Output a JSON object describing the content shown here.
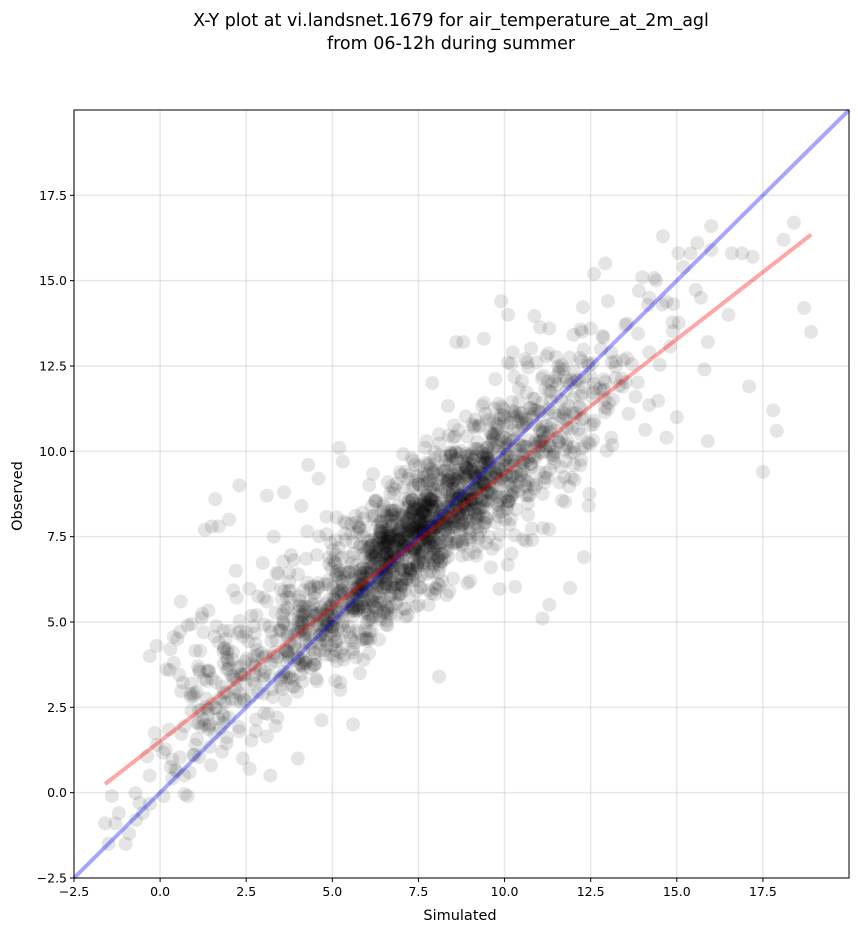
{
  "chart_data": {
    "type": "scatter",
    "title_lines": [
      "X-Y plot at vi.landsnet.1679 for air_temperature_at_2m_agl",
      "from 06-12h during summer"
    ],
    "xlabel": "Simulated",
    "ylabel": "Observed",
    "xlim": [
      -2.5,
      20
    ],
    "ylim": [
      -2.5,
      20
    ],
    "xticks": [
      -2.5,
      0.0,
      2.5,
      5.0,
      7.5,
      10.0,
      12.5,
      15.0,
      17.5
    ],
    "yticks": [
      -2.5,
      0.0,
      2.5,
      5.0,
      7.5,
      10.0,
      12.5,
      15.0,
      17.5
    ],
    "xtick_labels": [
      "−2.5",
      "0.0",
      "2.5",
      "5.0",
      "7.5",
      "10.0",
      "12.5",
      "15.0",
      "17.5"
    ],
    "ytick_labels": [
      "−2.5",
      "0.0",
      "2.5",
      "5.0",
      "7.5",
      "10.0",
      "12.5",
      "15.0",
      "17.5"
    ],
    "grid": true,
    "point_color": "#000000",
    "point_alpha": 0.1,
    "lines": [
      {
        "role": "identity",
        "color": "#0000ff",
        "alpha": 0.35,
        "points": [
          [
            -2.5,
            -2.5
          ],
          [
            20,
            20
          ]
        ]
      },
      {
        "role": "regression",
        "color": "#ff0000",
        "alpha": 0.35,
        "points": [
          [
            -1.6,
            0.25
          ],
          [
            18.9,
            16.35
          ]
        ]
      }
    ],
    "points": [
      [
        -1.5,
        -1.5
      ],
      [
        -1.6,
        -0.9
      ],
      [
        -1.3,
        -0.9
      ],
      [
        -1.4,
        -0.1
      ],
      [
        -1.2,
        -0.6
      ],
      [
        -1.0,
        -1.5
      ],
      [
        -0.9,
        -1.2
      ],
      [
        -0.7,
        -0.8
      ],
      [
        -0.6,
        -0.3
      ],
      [
        -0.5,
        -0.6
      ],
      [
        -0.3,
        0.5
      ],
      [
        -0.3,
        4.0
      ],
      [
        -0.1,
        1.4
      ],
      [
        -0.1,
        4.3
      ],
      [
        0.1,
        -0.1
      ],
      [
        0.3,
        4.2
      ],
      [
        0.4,
        3.8
      ],
      [
        0.6,
        5.6
      ],
      [
        0.7,
        0.5
      ],
      [
        0.8,
        -0.1
      ],
      [
        0.8,
        4.9
      ],
      [
        0.9,
        3.2
      ],
      [
        1.0,
        1.1
      ],
      [
        1.1,
        3.7
      ],
      [
        1.3,
        7.7
      ],
      [
        1.5,
        7.8
      ],
      [
        1.6,
        8.6
      ],
      [
        1.7,
        7.8
      ],
      [
        1.9,
        4.5
      ],
      [
        2.0,
        8.0
      ],
      [
        2.2,
        6.5
      ],
      [
        2.3,
        9.0
      ],
      [
        2.4,
        1.0
      ],
      [
        2.6,
        0.7
      ],
      [
        3.1,
        8.7
      ],
      [
        3.2,
        0.5
      ],
      [
        3.3,
        7.5
      ],
      [
        3.6,
        8.8
      ],
      [
        4.0,
        1.0
      ],
      [
        4.1,
        8.4
      ],
      [
        4.3,
        9.6
      ],
      [
        4.6,
        9.2
      ],
      [
        5.2,
        10.1
      ],
      [
        5.3,
        9.7
      ],
      [
        5.6,
        2.0
      ],
      [
        5.8,
        3.5
      ],
      [
        7.9,
        12.0
      ],
      [
        8.1,
        3.4
      ],
      [
        8.6,
        13.2
      ],
      [
        8.8,
        13.2
      ],
      [
        9.4,
        13.3
      ],
      [
        9.9,
        14.4
      ],
      [
        10.1,
        14.0
      ],
      [
        10.1,
        12.6
      ],
      [
        10.6,
        12.7
      ],
      [
        11.3,
        13.6
      ],
      [
        11.1,
        5.1
      ],
      [
        11.3,
        5.5
      ],
      [
        11.9,
        6.0
      ],
      [
        12.3,
        6.9
      ],
      [
        12.6,
        15.2
      ],
      [
        13.0,
        14.4
      ],
      [
        13.5,
        13.7
      ],
      [
        13.9,
        14.7
      ],
      [
        14.0,
        15.1
      ],
      [
        14.2,
        14.5
      ],
      [
        14.4,
        15.0
      ],
      [
        14.6,
        16.3
      ],
      [
        14.7,
        10.4
      ],
      [
        15.0,
        11.0
      ],
      [
        15.2,
        15.4
      ],
      [
        15.4,
        15.8
      ],
      [
        15.6,
        16.1
      ],
      [
        15.7,
        14.5
      ],
      [
        15.8,
        12.4
      ],
      [
        15.9,
        10.3
      ],
      [
        15.9,
        13.2
      ],
      [
        16.0,
        16.6
      ],
      [
        16.0,
        15.9
      ],
      [
        16.5,
        14.0
      ],
      [
        16.6,
        15.8
      ],
      [
        16.9,
        15.8
      ],
      [
        17.1,
        11.9
      ],
      [
        17.2,
        15.7
      ],
      [
        17.5,
        9.4
      ],
      [
        17.8,
        11.2
      ],
      [
        17.9,
        10.6
      ],
      [
        18.1,
        16.2
      ],
      [
        18.4,
        16.7
      ],
      [
        18.7,
        14.2
      ],
      [
        18.9,
        13.5
      ],
      [
        13.8,
        11.6
      ],
      [
        12.8,
        13.0
      ],
      [
        12.5,
        13.6
      ],
      [
        14.2,
        12.9
      ],
      [
        13.1,
        10.4
      ],
      [
        13.6,
        11.1
      ],
      [
        11.5,
        11.6
      ],
      [
        12.1,
        12.1
      ],
      [
        10.9,
        11.2
      ],
      [
        2.0,
        2.2
      ],
      [
        2.3,
        1.8
      ],
      [
        1.5,
        2.6
      ],
      [
        1.8,
        1.2
      ],
      [
        2.7,
        3.3
      ],
      [
        3.0,
        2.9
      ],
      [
        3.4,
        2.2
      ],
      [
        3.9,
        3.1
      ],
      [
        4.2,
        3.8
      ],
      [
        4.5,
        4.1
      ],
      [
        1.3,
        2.0
      ],
      [
        2.5,
        4.7
      ],
      [
        2.8,
        5.2
      ],
      [
        3.1,
        5.6
      ],
      [
        3.6,
        5.9
      ],
      [
        4.0,
        6.4
      ],
      [
        1.7,
        4.4
      ],
      [
        2.1,
        3.9
      ],
      [
        0.9,
        2.8
      ],
      [
        0.5,
        4.5
      ],
      [
        4.8,
        4.6
      ],
      [
        5.0,
        5.2
      ],
      [
        5.3,
        4.9
      ],
      [
        5.5,
        5.7
      ],
      [
        5.8,
        6.1
      ],
      [
        6.1,
        6.6
      ],
      [
        6.4,
        6.3
      ],
      [
        6.6,
        7.0
      ],
      [
        6.9,
        6.8
      ],
      [
        7.1,
        7.3
      ],
      [
        7.3,
        7.7
      ],
      [
        7.6,
        7.4
      ],
      [
        7.8,
        8.1
      ],
      [
        8.0,
        8.4
      ],
      [
        8.2,
        7.9
      ],
      [
        8.5,
        8.8
      ],
      [
        8.7,
        9.1
      ],
      [
        9.0,
        9.4
      ],
      [
        9.2,
        8.9
      ],
      [
        9.5,
        9.8
      ],
      [
        5.2,
        6.3
      ],
      [
        5.5,
        6.9
      ],
      [
        5.9,
        7.5
      ],
      [
        6.2,
        8.0
      ],
      [
        6.5,
        8.4
      ],
      [
        6.8,
        8.9
      ],
      [
        7.0,
        9.3
      ],
      [
        7.4,
        9.6
      ],
      [
        7.7,
        10.1
      ],
      [
        8.1,
        10.5
      ],
      [
        6.0,
        5.0
      ],
      [
        6.3,
        5.4
      ],
      [
        6.7,
        5.8
      ],
      [
        7.0,
        6.1
      ],
      [
        7.4,
        6.4
      ],
      [
        7.8,
        6.7
      ],
      [
        8.2,
        7.0
      ],
      [
        8.6,
        7.3
      ],
      [
        9.0,
        7.6
      ],
      [
        9.4,
        7.9
      ],
      [
        9.8,
        8.3
      ],
      [
        10.2,
        8.7
      ],
      [
        10.6,
        9.0
      ],
      [
        11.0,
        9.4
      ],
      [
        11.4,
        9.8
      ],
      [
        11.8,
        10.2
      ],
      [
        12.2,
        10.5
      ],
      [
        12.6,
        10.9
      ],
      [
        10.4,
        10.6
      ],
      [
        10.8,
        11.0
      ],
      [
        5.6,
        4.2
      ],
      [
        6.1,
        4.5
      ],
      [
        6.6,
        4.9
      ],
      [
        7.2,
        5.2
      ],
      [
        7.8,
        5.5
      ],
      [
        8.4,
        5.9
      ],
      [
        9.0,
        6.2
      ],
      [
        9.6,
        6.6
      ],
      [
        10.2,
        7.0
      ],
      [
        10.8,
        7.4
      ],
      [
        4.6,
        6.0
      ],
      [
        4.9,
        6.7
      ],
      [
        5.1,
        7.4
      ],
      [
        5.4,
        7.9
      ],
      [
        4.4,
        5.3
      ],
      [
        3.7,
        4.6
      ],
      [
        3.3,
        4.0
      ],
      [
        2.9,
        3.6
      ],
      [
        4.1,
        5.0
      ],
      [
        3.5,
        3.3
      ]
    ],
    "density_clusters": [
      {
        "center": [
          7.0,
          7.2
        ],
        "spread": [
          1.4,
          1.4
        ],
        "correlation": 0.75,
        "count": 700
      },
      {
        "center": [
          8.6,
          8.6
        ],
        "spread": [
          1.3,
          1.2
        ],
        "correlation": 0.6,
        "count": 420
      },
      {
        "center": [
          4.5,
          4.8
        ],
        "spread": [
          1.5,
          1.4
        ],
        "correlation": 0.7,
        "count": 280
      },
      {
        "center": [
          10.8,
          10.2
        ],
        "spread": [
          1.2,
          1.4
        ],
        "correlation": 0.5,
        "count": 220
      },
      {
        "center": [
          2.0,
          3.2
        ],
        "spread": [
          1.1,
          1.5
        ],
        "correlation": 0.4,
        "count": 120
      },
      {
        "center": [
          12.5,
          12.0
        ],
        "spread": [
          1.3,
          1.4
        ],
        "correlation": 0.5,
        "count": 90
      }
    ]
  }
}
